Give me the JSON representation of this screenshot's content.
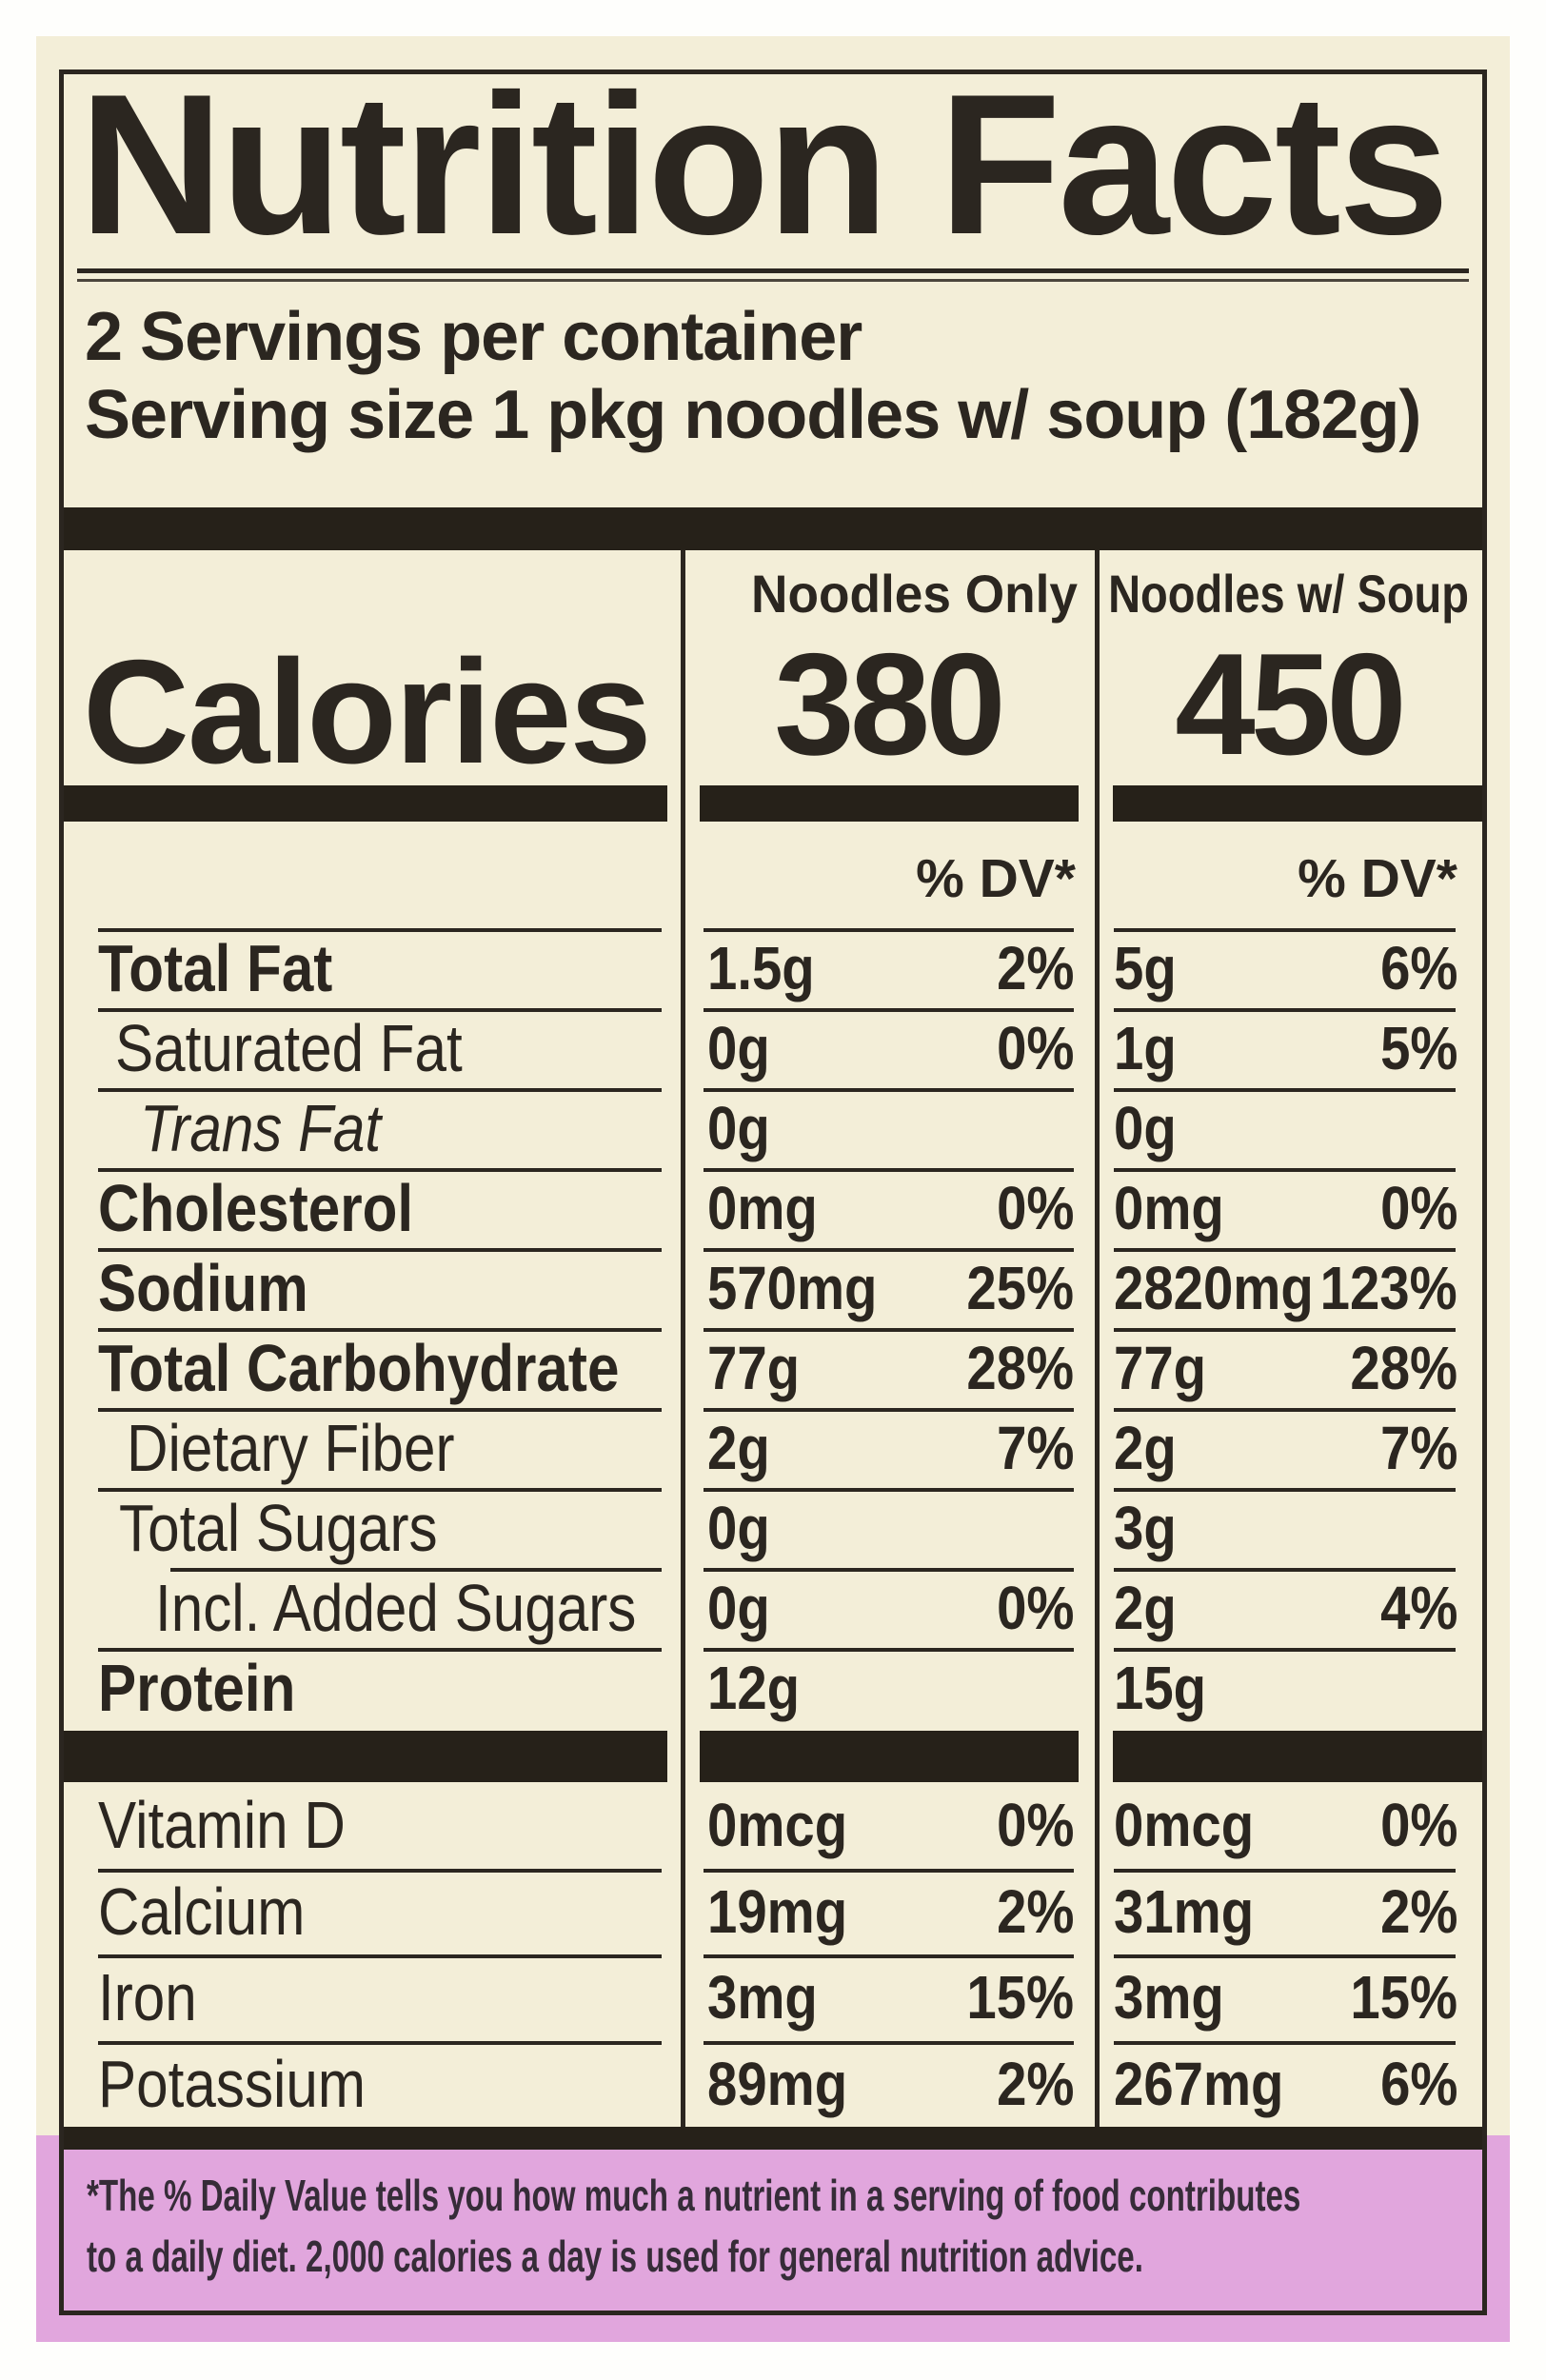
{
  "label": {
    "paper_color": "#f3eed8",
    "ink_color": "#2b2620",
    "footnote_band_color": "#e1a6dd",
    "title": "Nutrition Facts",
    "servings_per_container": "2 Servings per container",
    "serving_size": "Serving size 1 pkg noodles w/ soup (182g)",
    "columns": {
      "col1": "Noodles Only",
      "col2": "Noodles w/ Soup"
    },
    "calories": {
      "label": "Calories",
      "col1": "380",
      "col2": "450"
    },
    "dv_heading": "% DV*",
    "rows": [
      {
        "label": "Total Fat",
        "col1": {
          "amount": "1.5g",
          "dv": "2%"
        },
        "col2": {
          "amount": "5g",
          "dv": "6%"
        }
      },
      {
        "label": "Saturated Fat",
        "col1": {
          "amount": "0g",
          "dv": "0%"
        },
        "col2": {
          "amount": "1g",
          "dv": "5%"
        }
      },
      {
        "label": "Trans Fat",
        "col1": {
          "amount": "0g",
          "dv": ""
        },
        "col2": {
          "amount": "0g",
          "dv": ""
        }
      },
      {
        "label": "Cholesterol",
        "col1": {
          "amount": "0mg",
          "dv": "0%"
        },
        "col2": {
          "amount": "0mg",
          "dv": "0%"
        }
      },
      {
        "label": "Sodium",
        "col1": {
          "amount": "570mg",
          "dv": "25%"
        },
        "col2": {
          "amount": "2820mg",
          "dv": "123%"
        }
      },
      {
        "label": "Total Carbohydrate",
        "col1": {
          "amount": "77g",
          "dv": "28%"
        },
        "col2": {
          "amount": "77g",
          "dv": "28%"
        }
      },
      {
        "label": "Dietary Fiber",
        "col1": {
          "amount": "2g",
          "dv": "7%"
        },
        "col2": {
          "amount": "2g",
          "dv": "7%"
        }
      },
      {
        "label": "Total Sugars",
        "col1": {
          "amount": "0g",
          "dv": ""
        },
        "col2": {
          "amount": "3g",
          "dv": ""
        }
      },
      {
        "label": "Incl. Added Sugars",
        "col1": {
          "amount": "0g",
          "dv": "0%"
        },
        "col2": {
          "amount": "2g",
          "dv": "4%"
        }
      },
      {
        "label": "Protein",
        "col1": {
          "amount": "12g",
          "dv": ""
        },
        "col2": {
          "amount": "15g",
          "dv": ""
        }
      }
    ],
    "vitamins": [
      {
        "label": "Vitamin D",
        "col1": {
          "amount": "0mcg",
          "dv": "0%"
        },
        "col2": {
          "amount": "0mcg",
          "dv": "0%"
        }
      },
      {
        "label": "Calcium",
        "col1": {
          "amount": "19mg",
          "dv": "2%"
        },
        "col2": {
          "amount": "31mg",
          "dv": "2%"
        }
      },
      {
        "label": "Iron",
        "col1": {
          "amount": "3mg",
          "dv": "15%"
        },
        "col2": {
          "amount": "3mg",
          "dv": "15%"
        }
      },
      {
        "label": "Potassium",
        "col1": {
          "amount": "89mg",
          "dv": "2%"
        },
        "col2": {
          "amount": "267mg",
          "dv": "6%"
        }
      }
    ],
    "footnote": {
      "line1": "*The % Daily Value tells you how much a nutrient in a serving of food contributes",
      "line2": "to a daily diet. 2,000 calories a day is used for general nutrition advice."
    }
  }
}
